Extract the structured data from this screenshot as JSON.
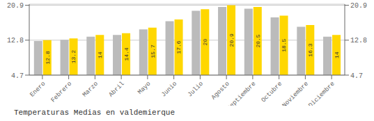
{
  "chart_data": {
    "type": "bar",
    "title": "Temperaturas Medias en valdemierque",
    "categories": [
      "Enero",
      "Febrero",
      "Marzo",
      "Abril",
      "Mayo",
      "Junio",
      "Julio",
      "Agosto",
      "Septiembre",
      "Octubre",
      "Noviembre",
      "Diciembre"
    ],
    "series": [
      {
        "color": "#BBBBBB",
        "values": [
          12.6,
          12.9,
          13.6,
          14.0,
          15.3,
          17.2,
          19.6,
          20.5,
          20.1,
          18.1,
          15.9,
          13.6
        ]
      },
      {
        "color": "#FFD700",
        "values": [
          12.8,
          13.2,
          14.0,
          14.4,
          15.7,
          17.6,
          20.0,
          20.9,
          20.5,
          18.5,
          16.3,
          14.0
        ],
        "data_labels": true
      }
    ],
    "ylim": [
      4.7,
      21.15
    ],
    "yticks": [
      4.7,
      12.8,
      20.9
    ],
    "grid": true
  }
}
